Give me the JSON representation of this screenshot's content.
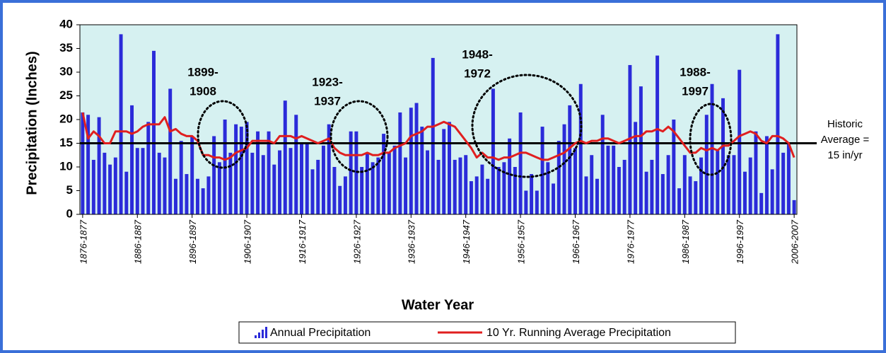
{
  "chart_data": {
    "type": "bar",
    "y_label": "Precipitation (Inches)",
    "x_label": "Water Year",
    "categories": [
      "1876-1877",
      null,
      null,
      null,
      null,
      null,
      null,
      null,
      null,
      null,
      "1886-1887",
      null,
      null,
      null,
      null,
      null,
      null,
      null,
      null,
      null,
      "1896-1897",
      null,
      null,
      null,
      null,
      null,
      null,
      null,
      null,
      null,
      "1906-1907",
      null,
      null,
      null,
      null,
      null,
      null,
      null,
      null,
      null,
      "1916-1917",
      null,
      null,
      null,
      null,
      null,
      null,
      null,
      null,
      null,
      "1926-1927",
      null,
      null,
      null,
      null,
      null,
      null,
      null,
      null,
      null,
      "1936-1937",
      null,
      null,
      null,
      null,
      null,
      null,
      null,
      null,
      null,
      "1946-1947",
      null,
      null,
      null,
      null,
      null,
      null,
      null,
      null,
      null,
      "1956-1957",
      null,
      null,
      null,
      null,
      null,
      null,
      null,
      null,
      null,
      "1966-1967",
      null,
      null,
      null,
      null,
      null,
      null,
      null,
      null,
      null,
      "1976-1977",
      null,
      null,
      null,
      null,
      null,
      null,
      null,
      null,
      null,
      "1986-1987",
      null,
      null,
      null,
      null,
      null,
      null,
      null,
      null,
      null,
      "1996-1997",
      null,
      null,
      null,
      null,
      null,
      null,
      null,
      null,
      null,
      "2006-2007"
    ],
    "series": [
      {
        "name": "Annual Precipitation",
        "type": "bar",
        "color": "#2b2bd9",
        "values": [
          21.5,
          21,
          11.5,
          20.5,
          13,
          10.5,
          12,
          38,
          9,
          23,
          14,
          14,
          19.5,
          34.5,
          13,
          12,
          26.5,
          7.5,
          15.5,
          8.5,
          16.5,
          7.5,
          5.5,
          8,
          16.5,
          11,
          20,
          13,
          19,
          18.5,
          19.5,
          13,
          17.5,
          12.5,
          17.5,
          10.5,
          13.5,
          24,
          14,
          21,
          15,
          15,
          9.5,
          11.5,
          14.5,
          19,
          10,
          6,
          8,
          17.5,
          17.5,
          10,
          13,
          11,
          12,
          17,
          13,
          14.5,
          21.5,
          12,
          22.5,
          23.5,
          18.5,
          13.5,
          33,
          11.5,
          18,
          19.5,
          11.5,
          12,
          12.5,
          7,
          8,
          10.5,
          7.5,
          26.5,
          10,
          11,
          16,
          10,
          21.5,
          5,
          8.5,
          5,
          18.5,
          11,
          6.5,
          15.5,
          19,
          23,
          14,
          27.5,
          8,
          12.5,
          7.5,
          21,
          14.5,
          14.5,
          10,
          11.5,
          31.5,
          19.5,
          27,
          9,
          11.5,
          33.5,
          8.5,
          12.5,
          20,
          5.5,
          12.5,
          8,
          7,
          12,
          21,
          27.5,
          13.5,
          24.5,
          12.5,
          12.5,
          30.5,
          9,
          12,
          17.5,
          4.5,
          16.5,
          9.5,
          38,
          13,
          15,
          3
        ]
      },
      {
        "name": "10 Yr. Running Average Precipitation",
        "type": "line",
        "color": "#e01f1f",
        "values": [
          21.5,
          16,
          17.5,
          16.5,
          15,
          15,
          17.5,
          17.5,
          17.5,
          17,
          17.5,
          18.5,
          19,
          19,
          19,
          20.5,
          17.5,
          18,
          17,
          16.5,
          16.5,
          15.5,
          12.5,
          12.5,
          12,
          12,
          11.5,
          12,
          13,
          13.5,
          14,
          15.5,
          15.5,
          15.5,
          15.5,
          15,
          16.5,
          16.5,
          16.5,
          16,
          16.5,
          16,
          15.5,
          15,
          15.5,
          16,
          14,
          13,
          12.5,
          12.5,
          12.5,
          12.5,
          13,
          12.5,
          12.5,
          13,
          13,
          14,
          14.5,
          15,
          16.5,
          17,
          17.5,
          18.5,
          18.5,
          19,
          19.5,
          19,
          18.5,
          17,
          15.5,
          14,
          12,
          13,
          12,
          12,
          11.5,
          12,
          12,
          12.5,
          13,
          13,
          12.5,
          12,
          11.5,
          11.5,
          12,
          12.5,
          13,
          14,
          15,
          15.5,
          15,
          15.5,
          15.5,
          16,
          16,
          15.5,
          15,
          15.5,
          16,
          16.5,
          16.5,
          17.5,
          17.5,
          18,
          17.5,
          18.5,
          17.5,
          16,
          14.5,
          13,
          13,
          14,
          13.5,
          14,
          13.5,
          14.5,
          14.5,
          15.5,
          16.5,
          17,
          17.5,
          17,
          15.5,
          15,
          16.5,
          16.5,
          16,
          15,
          12
        ]
      }
    ],
    "ylim": [
      0,
      40
    ],
    "yticks": [
      0,
      5,
      10,
      15,
      20,
      25,
      30,
      35,
      40
    ],
    "reference_line": {
      "value": 15,
      "label": [
        "Historic",
        "Average =",
        "15 in/yr"
      ]
    },
    "annotations": [
      [
        "1899-",
        "1908"
      ],
      [
        "1923-",
        "1937"
      ],
      [
        "1948-",
        "1972"
      ],
      [
        "1988-",
        "1997"
      ]
    ]
  }
}
